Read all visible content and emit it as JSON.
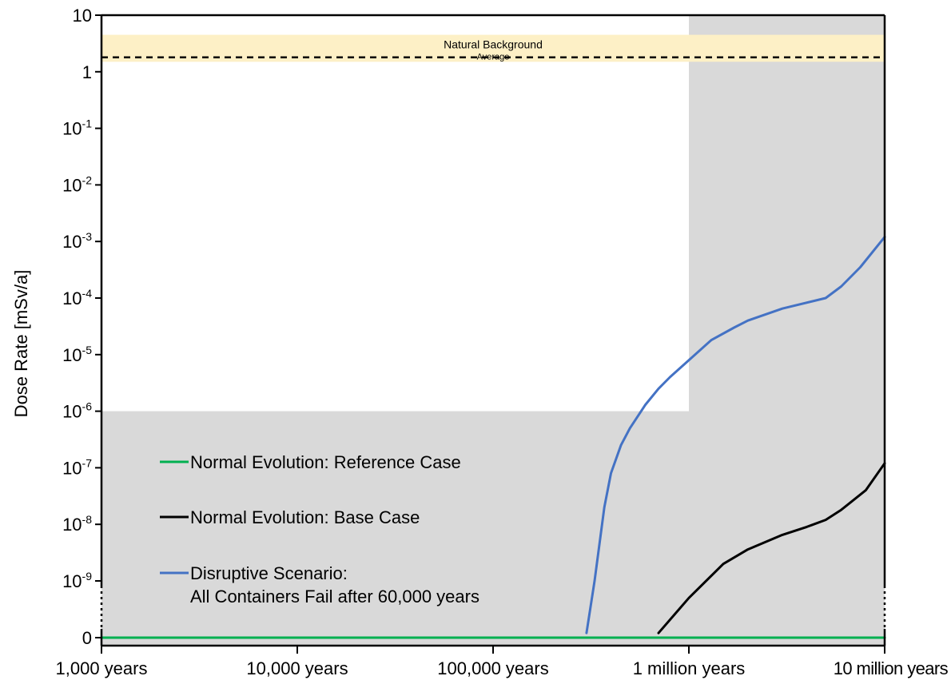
{
  "chart_data": {
    "type": "line",
    "ylabel": "Dose Rate [mSv/a]",
    "x_scale": "log",
    "y_scale": "log",
    "xlim": [
      1000,
      10000000
    ],
    "ylim_top": 10,
    "x_ticks": [
      {
        "value": 1000,
        "label": "1,000 years"
      },
      {
        "value": 10000,
        "label": "10,000 years"
      },
      {
        "value": 100000,
        "label": "100,000 years"
      },
      {
        "value": 1000000,
        "label": "1 million years"
      },
      {
        "value": 10000000,
        "label": "10 million years"
      }
    ],
    "y_ticks": [
      {
        "value": 10,
        "base": "10",
        "exp": ""
      },
      {
        "value": 1,
        "base": "1",
        "exp": ""
      },
      {
        "value": 0.1,
        "base": "10",
        "exp": "-1"
      },
      {
        "value": 0.01,
        "base": "10",
        "exp": "-2"
      },
      {
        "value": 0.001,
        "base": "10",
        "exp": "-3"
      },
      {
        "value": 0.0001,
        "base": "10",
        "exp": "-4"
      },
      {
        "value": 1e-05,
        "base": "10",
        "exp": "-5"
      },
      {
        "value": 1e-06,
        "base": "10",
        "exp": "-6"
      },
      {
        "value": 1e-07,
        "base": "10",
        "exp": "-7"
      },
      {
        "value": 1e-08,
        "base": "10",
        "exp": "-8"
      },
      {
        "value": 1e-09,
        "base": "10",
        "exp": "-9"
      },
      {
        "value": 0,
        "base": "0",
        "exp": ""
      }
    ],
    "natural_background": {
      "label": "Natural Background",
      "average_label": "Average",
      "range": [
        1.5,
        4.5
      ],
      "average": 1.8,
      "color": "#fdf0c6"
    },
    "shaded_regions": [
      {
        "x": [
          1000,
          1000000
        ],
        "y": [
          0,
          1e-06
        ]
      },
      {
        "x": [
          1000000,
          10000000
        ],
        "y": [
          0,
          10
        ]
      }
    ],
    "shade_color": "#d9d9d9",
    "series": [
      {
        "name": "Normal Evolution: Reference Case",
        "color": "#00b050",
        "x": [
          1000,
          10000000
        ],
        "y": [
          0,
          0
        ]
      },
      {
        "name": "Normal Evolution: Base Case",
        "color": "#000000",
        "x": [
          700000,
          1000000,
          1500000,
          2000000,
          3000000,
          4000000,
          5000000,
          6000000,
          8000000,
          10000000
        ],
        "y": [
          1.2e-10,
          5e-10,
          2e-09,
          3.6e-09,
          6.5e-09,
          9e-09,
          1.2e-08,
          1.8e-08,
          4e-08,
          1.2e-07
        ]
      },
      {
        "name": "Disruptive Scenario:",
        "name_line2": "All Containers Fail after 60,000 years",
        "color": "#4472c4",
        "x": [
          300000,
          330000,
          370000,
          400000,
          450000,
          500000,
          600000,
          700000,
          800000,
          1000000,
          1300000,
          1700000,
          2000000,
          3000000,
          5000000,
          6000000,
          7500000,
          10000000
        ],
        "y": [
          1.2e-10,
          1e-09,
          2e-08,
          8e-08,
          2.5e-07,
          5e-07,
          1.3e-06,
          2.5e-06,
          4e-06,
          8e-06,
          1.8e-05,
          3e-05,
          4e-05,
          6.5e-05,
          0.0001,
          0.00016,
          0.00035,
          0.0012
        ]
      }
    ]
  }
}
